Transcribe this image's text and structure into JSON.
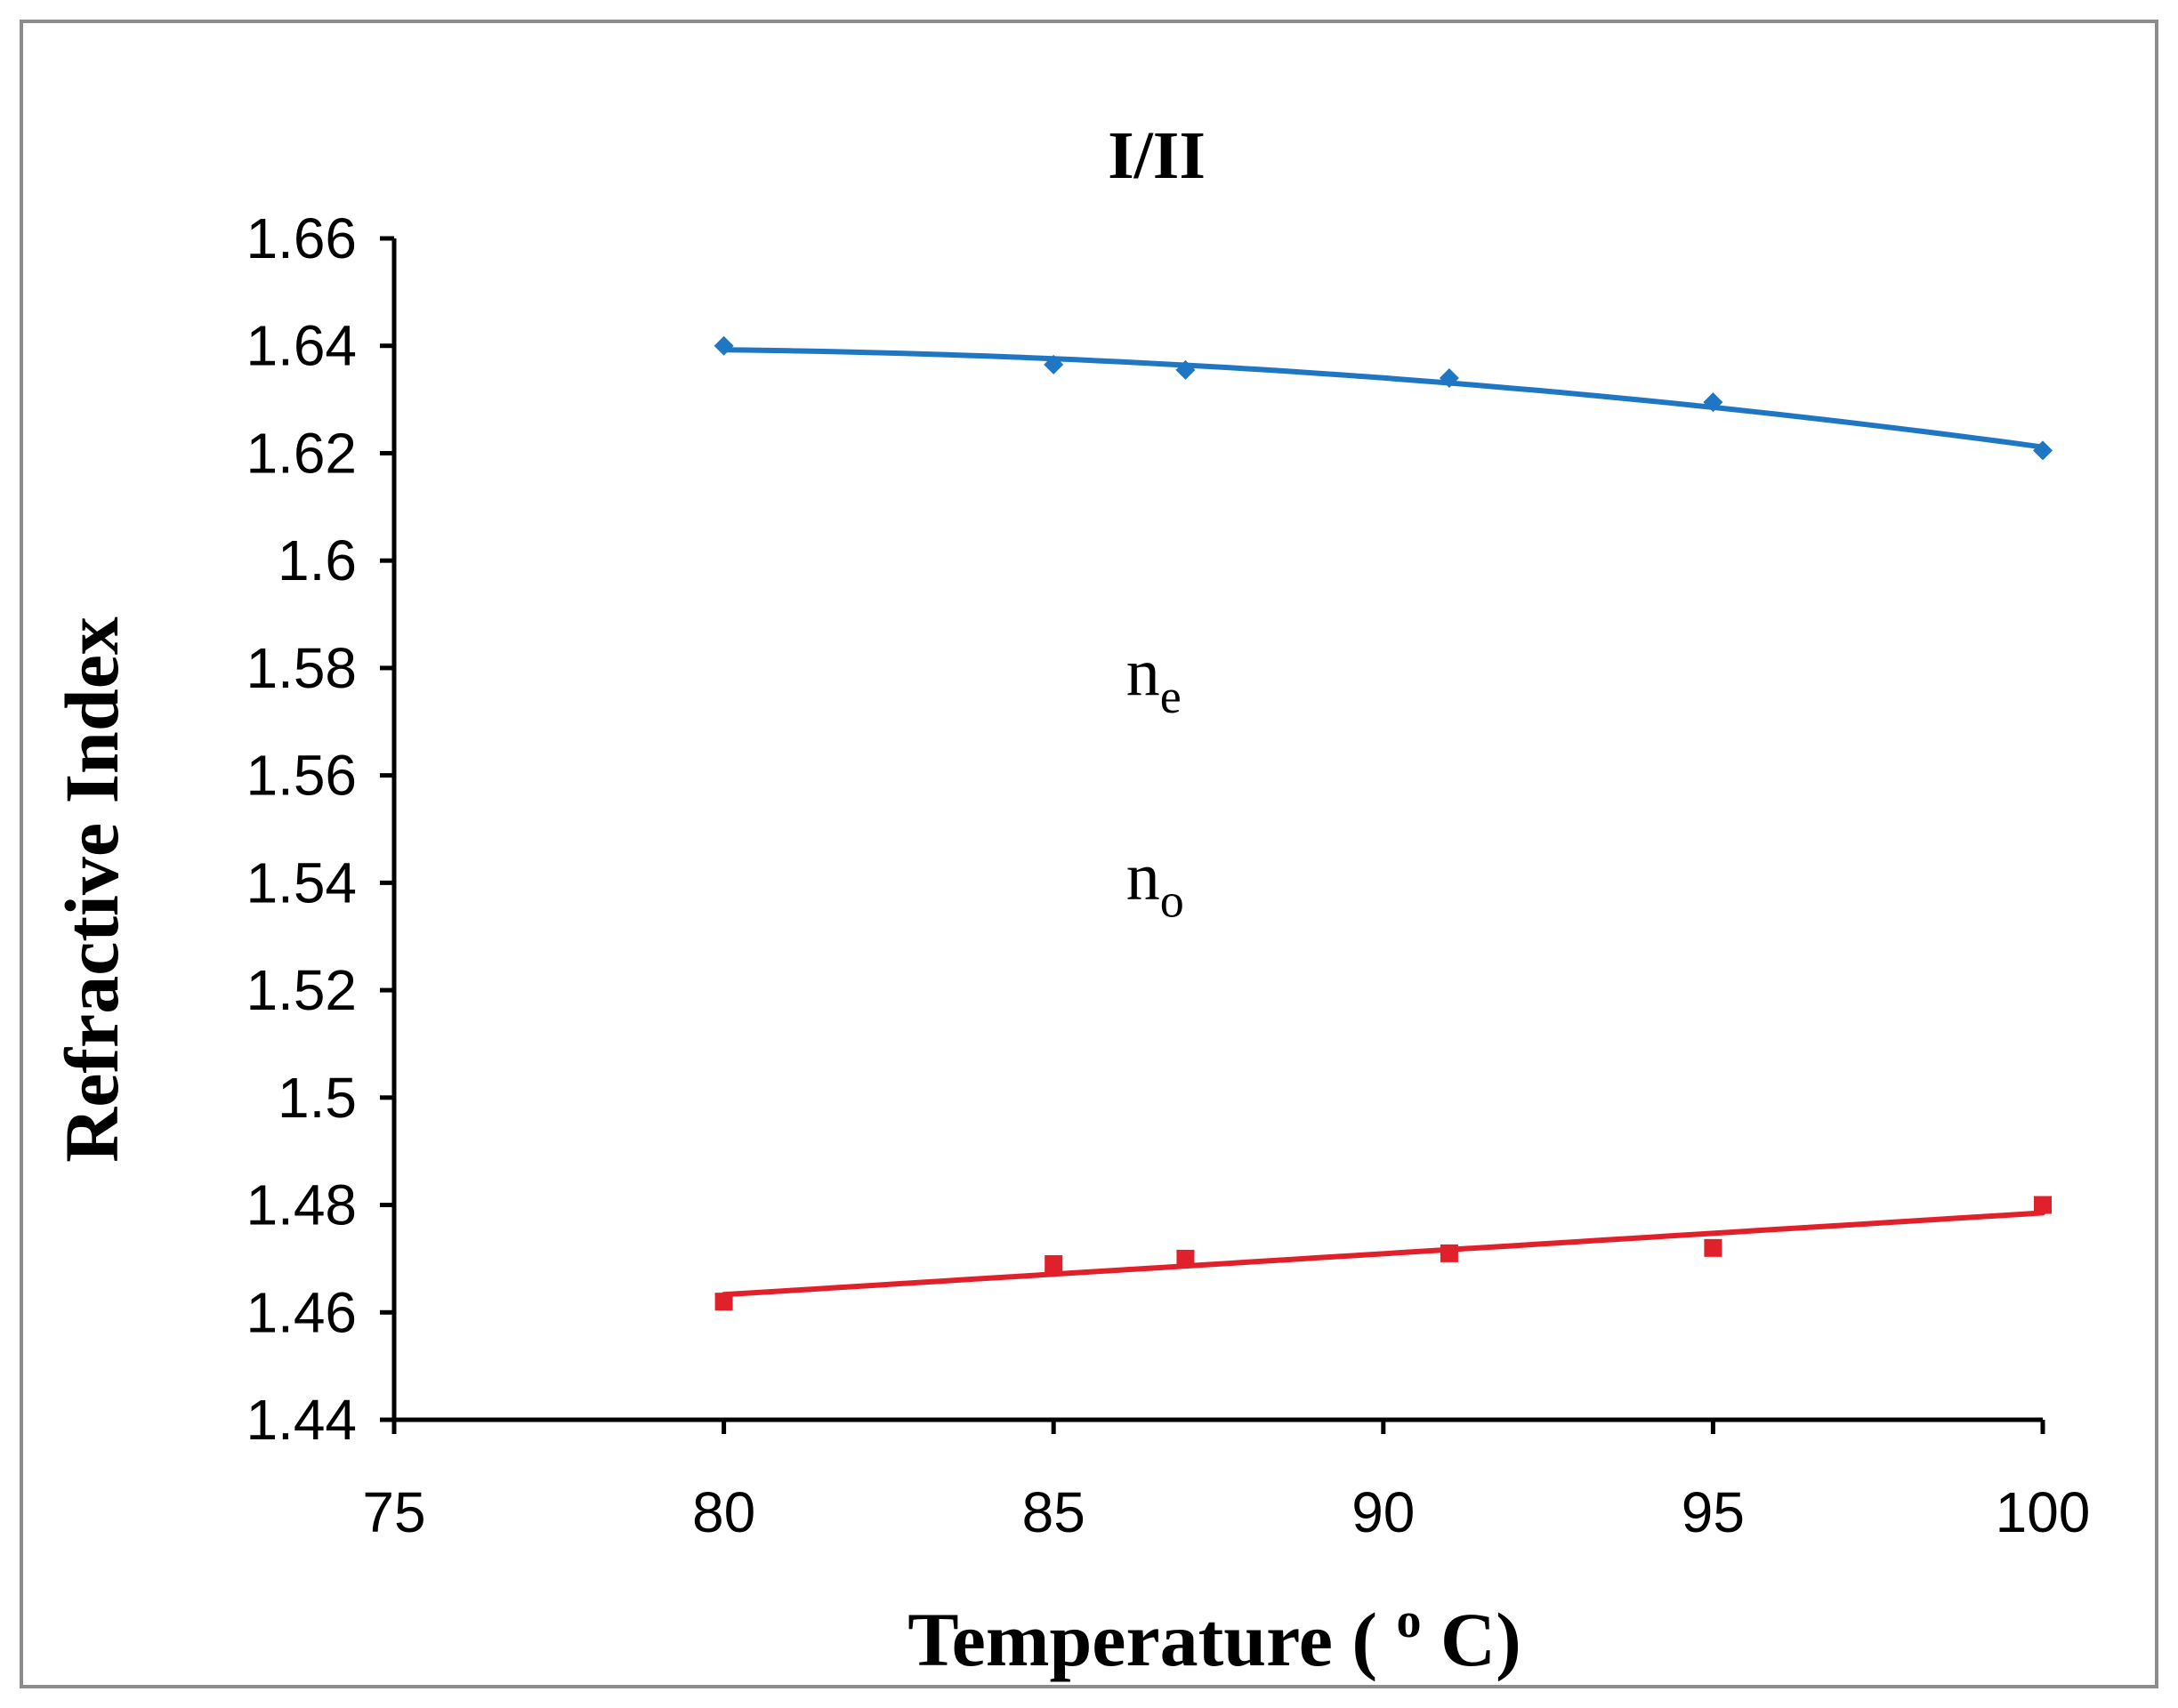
{
  "chart_data": {
    "type": "scatter",
    "title": "I/II",
    "xlabel": "Temperature",
    "xlabel_unit_open": "(",
    "xlabel_unit_sup": "o",
    "xlabel_unit_close": "C)",
    "ylabel": "Refractive Index",
    "xlim": [
      75,
      100
    ],
    "ylim": [
      1.44,
      1.66
    ],
    "xticks": [
      75,
      80,
      85,
      90,
      95,
      100
    ],
    "yticks": [
      1.44,
      1.46,
      1.48,
      1.5,
      1.52,
      1.54,
      1.56,
      1.58,
      1.6,
      1.62,
      1.64,
      1.66
    ],
    "ytick_labels": [
      "1.44",
      "1.46",
      "1.48",
      "1.5",
      "1.52",
      "1.54",
      "1.56",
      "1.58",
      "1.6",
      "1.62",
      "1.64",
      "1.66"
    ],
    "grid": false,
    "series": [
      {
        "name": "ne",
        "marker": "diamond",
        "color": "#1F77C4",
        "x": [
          80,
          85,
          87,
          91,
          95,
          100
        ],
        "y": [
          1.64,
          1.6365,
          1.6355,
          1.634,
          1.6295,
          1.6205
        ],
        "trend": {
          "type": "poly2",
          "x": [
            80,
            100
          ]
        }
      },
      {
        "name": "no",
        "marker": "square",
        "color": "#E0202A",
        "x": [
          80,
          85,
          87,
          91,
          95,
          100
        ],
        "y": [
          1.462,
          1.469,
          1.47,
          1.471,
          1.472,
          1.48
        ],
        "trend": {
          "type": "linear",
          "x": [
            80,
            100
          ]
        }
      }
    ],
    "annotations": [
      {
        "id": "ne",
        "base": "n",
        "sub": "e",
        "x": 86.1,
        "y": 1.575
      },
      {
        "id": "no",
        "base": "n",
        "sub": "o",
        "x": 86.1,
        "y": 1.537
      }
    ]
  }
}
